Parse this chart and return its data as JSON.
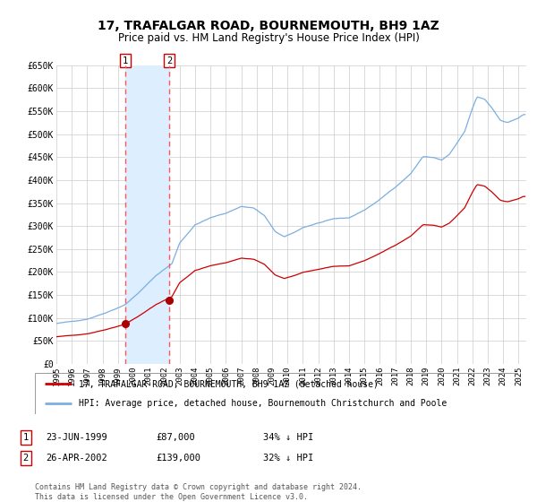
{
  "title": "17, TRAFALGAR ROAD, BOURNEMOUTH, BH9 1AZ",
  "subtitle": "Price paid vs. HM Land Registry's House Price Index (HPI)",
  "title_fontsize": 10,
  "subtitle_fontsize": 8.5,
  "ylabel_ticks": [
    "£0",
    "£50K",
    "£100K",
    "£150K",
    "£200K",
    "£250K",
    "£300K",
    "£350K",
    "£400K",
    "£450K",
    "£500K",
    "£550K",
    "£600K",
    "£650K"
  ],
  "ytick_vals": [
    0,
    50000,
    100000,
    150000,
    200000,
    250000,
    300000,
    350000,
    400000,
    450000,
    500000,
    550000,
    600000,
    650000
  ],
  "ylim": [
    0,
    650000
  ],
  "xlim_start": 1995.0,
  "xlim_end": 2025.5,
  "xticks": [
    1995,
    1996,
    1997,
    1998,
    1999,
    2000,
    2001,
    2002,
    2003,
    2004,
    2005,
    2006,
    2007,
    2008,
    2009,
    2010,
    2011,
    2012,
    2013,
    2014,
    2015,
    2016,
    2017,
    2018,
    2019,
    2020,
    2021,
    2022,
    2023,
    2024,
    2025
  ],
  "grid_color": "#cccccc",
  "background_color": "#ffffff",
  "plot_bg_color": "#ffffff",
  "red_line_color": "#cc0000",
  "blue_line_color": "#7aafe0",
  "shade_color": "#ddeeff",
  "vline_color": "#ff5555",
  "marker_color": "#aa0000",
  "transaction1_x": 1999.478,
  "transaction1_y": 87000,
  "transaction2_x": 2002.319,
  "transaction2_y": 139000,
  "legend1_label": "17, TRAFALGAR ROAD, BOURNEMOUTH, BH9 1AZ (detached house)",
  "legend2_label": "HPI: Average price, detached house, Bournemouth Christchurch and Poole",
  "table_rows": [
    {
      "num": "1",
      "date": "23-JUN-1999",
      "price": "£87,000",
      "hpi": "34% ↓ HPI"
    },
    {
      "num": "2",
      "date": "26-APR-2002",
      "price": "£139,000",
      "hpi": "32% ↓ HPI"
    }
  ],
  "footnote": "Contains HM Land Registry data © Crown copyright and database right 2024.\nThis data is licensed under the Open Government Licence v3.0.",
  "footnote_fontsize": 6.0
}
